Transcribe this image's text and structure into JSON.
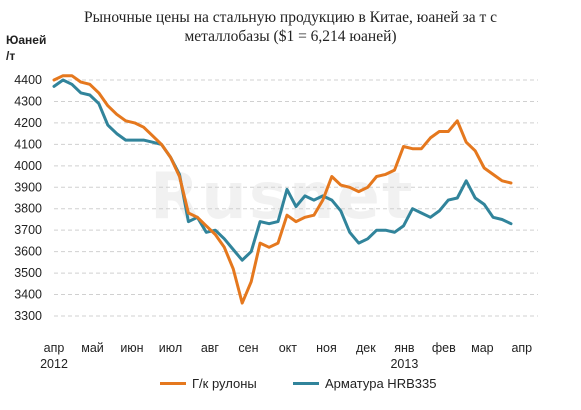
{
  "title_line1": "Рыночные цены на стальную продукцию в Китае, юаней за т с",
  "title_line2": "металлобазы ($1 = 6,214 юаней)",
  "ylabel_line1": "Юаней",
  "ylabel_line2": "/т",
  "watermark": "Rusnet",
  "legend": {
    "item1": "Г/к рулоны",
    "item2": "Арматура HRB335"
  },
  "colors": {
    "series1": "#E5781E",
    "series2": "#31849B",
    "grid": "#d0d0d0"
  },
  "chart_data": {
    "type": "line",
    "title": "Рыночные цены на стальную продукцию в Китае, юаней за т с металлобазы ($1 = 6,214 юаней)",
    "ylabel": "Юаней /т",
    "xlabel": "",
    "ylim": [
      3300,
      4400
    ],
    "yticks": [
      3300,
      3400,
      3500,
      3600,
      3700,
      3800,
      3900,
      4000,
      4100,
      4200,
      4300,
      4400
    ],
    "xlim": [
      0,
      52
    ],
    "x_tick_labels": [
      {
        "x": 0,
        "label": "апр"
      },
      {
        "x": 4.3,
        "label": "май"
      },
      {
        "x": 8.7,
        "label": "июн"
      },
      {
        "x": 13,
        "label": "июл"
      },
      {
        "x": 17.4,
        "label": "авг"
      },
      {
        "x": 21.7,
        "label": "сен"
      },
      {
        "x": 26.1,
        "label": "окт"
      },
      {
        "x": 30.4,
        "label": "ноя"
      },
      {
        "x": 34.8,
        "label": "дек"
      },
      {
        "x": 39.1,
        "label": "янв"
      },
      {
        "x": 43.5,
        "label": "фев"
      },
      {
        "x": 47.8,
        "label": "мар"
      },
      {
        "x": 52.2,
        "label": "апр"
      }
    ],
    "year_labels": [
      {
        "x": 0,
        "label": "2012"
      },
      {
        "x": 39.1,
        "label": "2013"
      }
    ],
    "grid": "horizontal-dashed",
    "legend_position": "bottom",
    "series": [
      {
        "name": "Г/к рулоны",
        "x": [
          0,
          1,
          2,
          3,
          4,
          5,
          6,
          7,
          8,
          9,
          10,
          11,
          12,
          13,
          14,
          15,
          16,
          17,
          18,
          19,
          20,
          21,
          22,
          23,
          24,
          25,
          26,
          27,
          28,
          29,
          30,
          31,
          32,
          33,
          34,
          35,
          36,
          37,
          38,
          39,
          40,
          41,
          42,
          43,
          44,
          45,
          46,
          47,
          48,
          49,
          50,
          51
        ],
        "values": [
          4400,
          4420,
          4420,
          4390,
          4380,
          4340,
          4280,
          4240,
          4210,
          4200,
          4180,
          4140,
          4100,
          4040,
          3950,
          3780,
          3760,
          3720,
          3680,
          3620,
          3520,
          3360,
          3460,
          3640,
          3620,
          3640,
          3770,
          3740,
          3760,
          3770,
          3840,
          3950,
          3910,
          3900,
          3880,
          3900,
          3950,
          3960,
          3980,
          4090,
          4080,
          4080,
          4130,
          4160,
          4160,
          4210,
          4110,
          4070,
          3990,
          3960,
          3930,
          3920
        ]
      },
      {
        "name": "Арматура HRB335",
        "x": [
          0,
          1,
          2,
          3,
          4,
          5,
          6,
          7,
          8,
          9,
          10,
          11,
          12,
          13,
          14,
          15,
          16,
          17,
          18,
          19,
          20,
          21,
          22,
          23,
          24,
          25,
          26,
          27,
          28,
          29,
          30,
          31,
          32,
          33,
          34,
          35,
          36,
          37,
          38,
          39,
          40,
          41,
          42,
          43,
          44,
          45,
          46,
          47,
          48,
          49,
          50,
          51
        ],
        "values": [
          4370,
          4400,
          4380,
          4340,
          4330,
          4290,
          4190,
          4150,
          4120,
          4120,
          4120,
          4110,
          4100,
          4040,
          3960,
          3740,
          3760,
          3690,
          3700,
          3660,
          3610,
          3560,
          3600,
          3740,
          3730,
          3740,
          3890,
          3810,
          3860,
          3840,
          3860,
          3840,
          3790,
          3690,
          3640,
          3660,
          3700,
          3700,
          3690,
          3720,
          3800,
          3780,
          3760,
          3790,
          3840,
          3850,
          3930,
          3850,
          3820,
          3760,
          3750,
          3730
        ]
      }
    ]
  }
}
